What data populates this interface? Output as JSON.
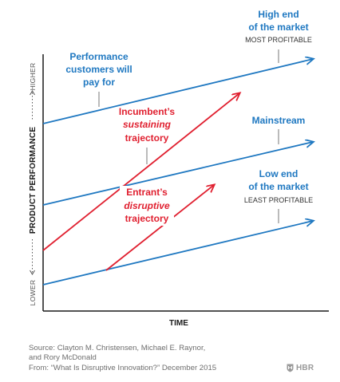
{
  "colors": {
    "blue": "#1f78c1",
    "red": "#e02030",
    "axis": "#1a1a1a",
    "label_gray": "#555555",
    "footer_gray": "#6e6e6e"
  },
  "axes": {
    "y_label": "PRODUCT PERFORMANCE",
    "y_higher": "HIGHER",
    "y_lower": "LOWER",
    "x_label": "TIME"
  },
  "lines": {
    "high_end": {
      "title_line1": "High end",
      "title_line2": "of the market",
      "subtitle": "MOST PROFITABLE"
    },
    "mainstream": {
      "title": "Mainstream"
    },
    "low_end": {
      "title_line1": "Low end",
      "title_line2": "of the market",
      "subtitle": "LEAST PROFITABLE"
    },
    "performance": {
      "line1": "Performance",
      "line2": "customers will",
      "line3": "pay for"
    },
    "incumbent": {
      "line1": "Incumbent’s",
      "line2": "sustaining",
      "line3": "trajectory"
    },
    "entrant": {
      "line1": "Entrant’s",
      "line2": "disruptive",
      "line3": "trajectory"
    }
  },
  "footer": {
    "source_line1": "Source: Clayton M. Christensen, Michael E. Raynor,",
    "source_line2": "and Rory McDonald",
    "source_line3": "From: “What Is Disruptive Innovation?” December 2015",
    "brand": "HBR"
  }
}
